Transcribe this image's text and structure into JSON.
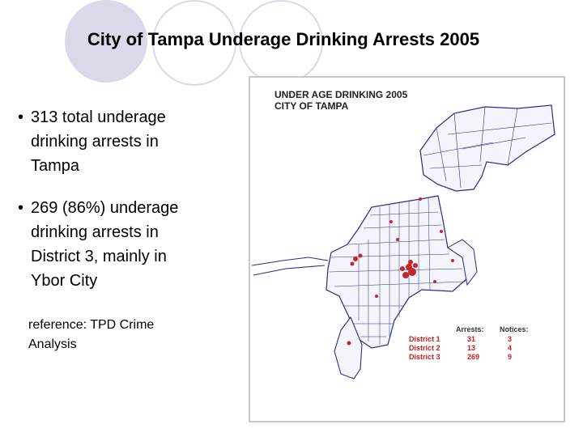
{
  "slide": {
    "title": "City of Tampa Underage Drinking Arrests 2005",
    "bullets": [
      {
        "lines": [
          "313 total underage",
          "drinking arrests in",
          "Tampa"
        ]
      },
      {
        "lines": [
          "269 (86%) underage",
          "drinking arrests in",
          "District 3, mainly in",
          "Ybor City"
        ]
      }
    ],
    "bullet_symbol": "•",
    "reference_lines": [
      "reference: TPD Crime",
      "Analysis"
    ]
  },
  "map": {
    "title_lines": [
      "UNDER AGE DRINKING 2005",
      "CITY OF TAMPA"
    ],
    "legend": {
      "headers": [
        "Arrests:",
        "Notices:"
      ],
      "rows": [
        {
          "district": "District 1",
          "arrests": "31",
          "notices": "3"
        },
        {
          "district": "District 2",
          "arrests": "13",
          "notices": "4"
        },
        {
          "district": "District 3",
          "arrests": "269",
          "notices": "9"
        }
      ]
    },
    "colors": {
      "boundary": "#2a2a8c",
      "arrest_dot": "#c0282a",
      "decor": "#d8daea"
    }
  }
}
